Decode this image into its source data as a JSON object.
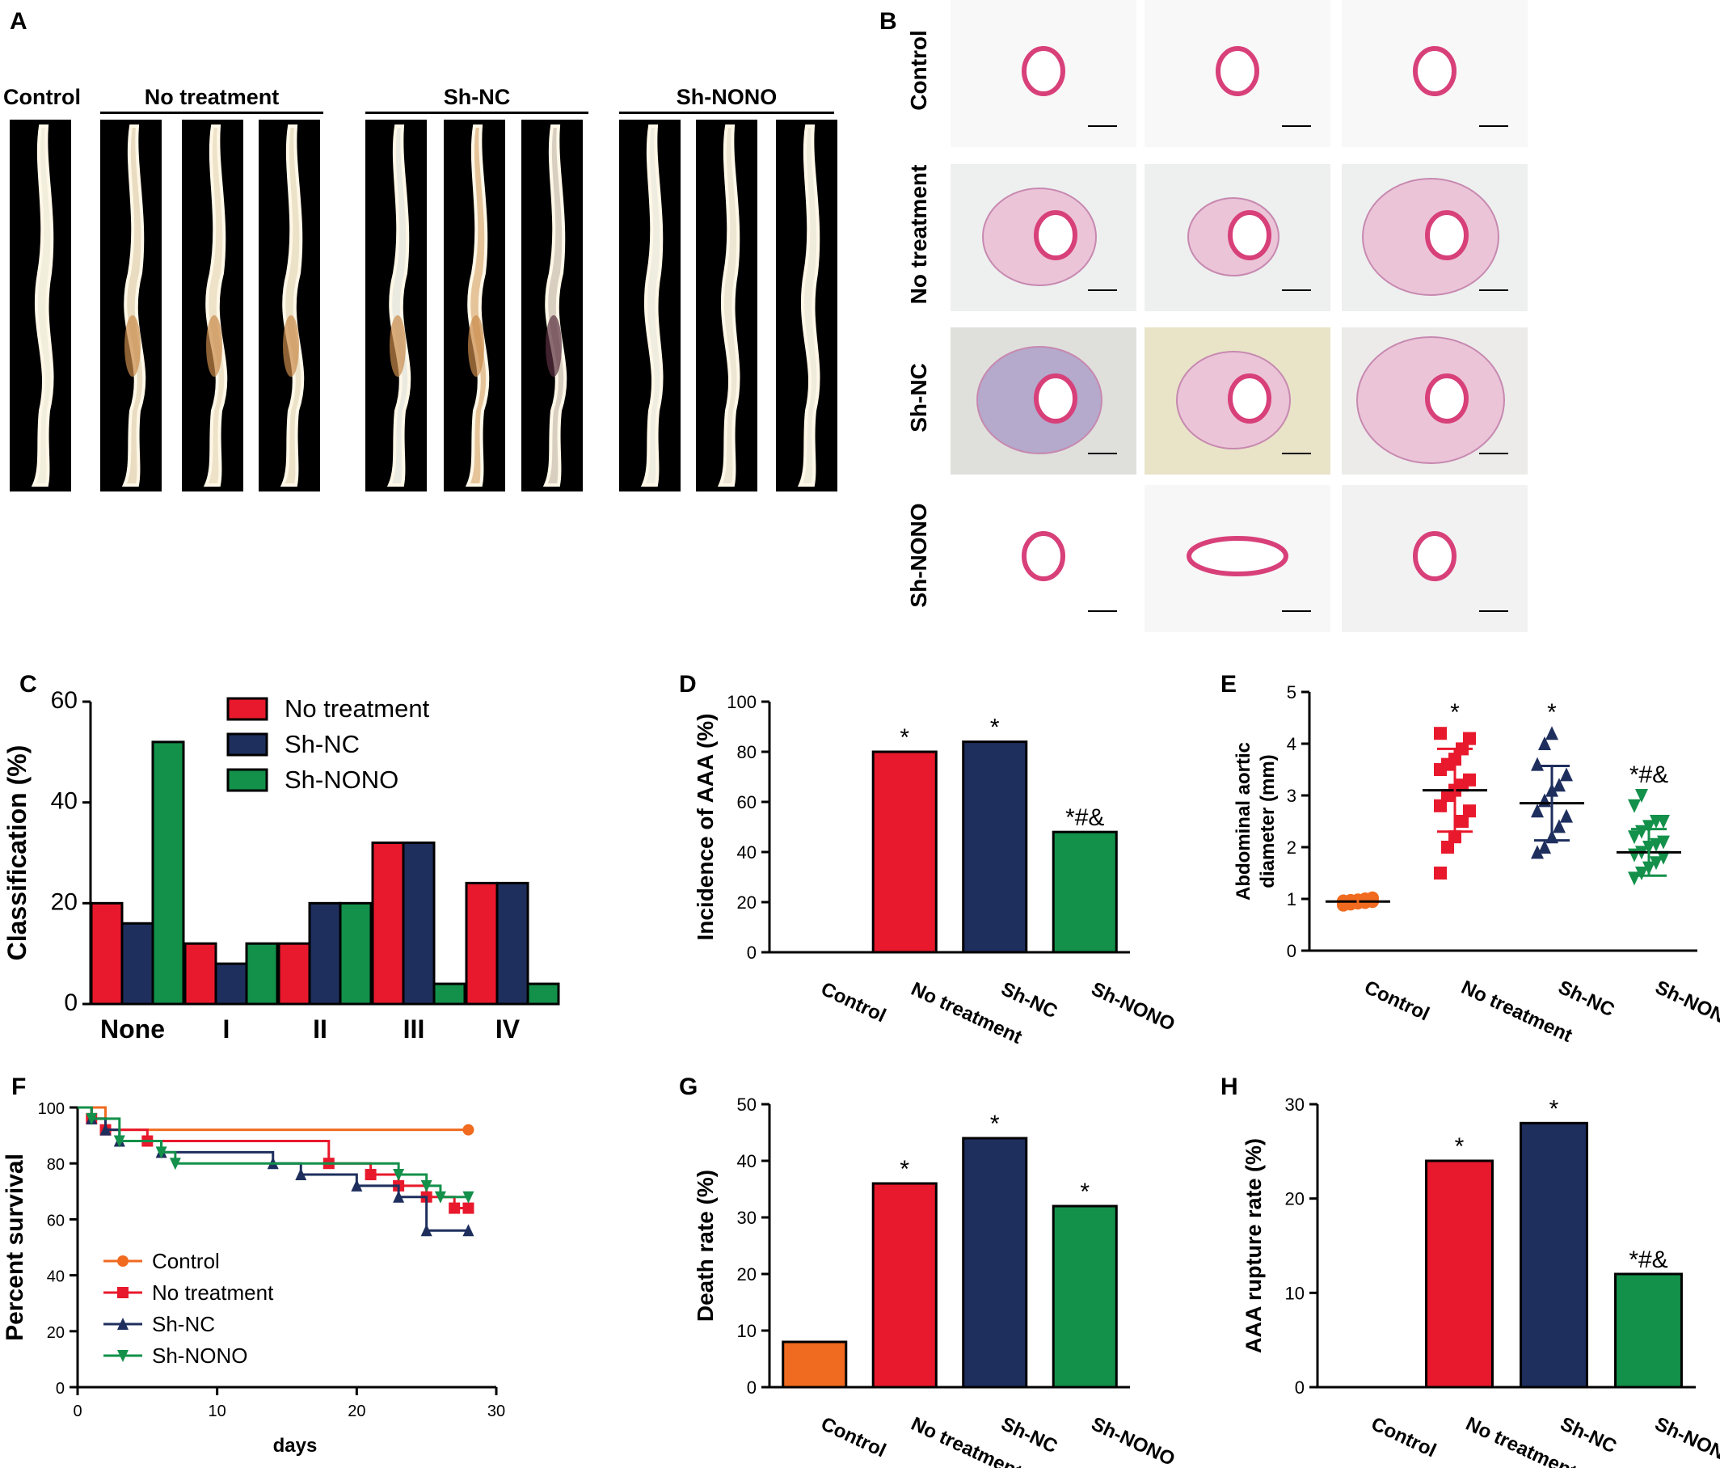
{
  "panelA": {
    "letter": "A",
    "groups": [
      "Control",
      "No treatment",
      "Sh-NC",
      "Sh-NONO"
    ]
  },
  "panelB": {
    "letter": "B",
    "rows": [
      "Control",
      "No treatment",
      "Sh-NC",
      "Sh-NONO"
    ]
  },
  "chart_data": [
    {
      "panel": "C",
      "type": "bar",
      "ylabel": "Classification (%)",
      "ylim": [
        0,
        60
      ],
      "yticks": [
        0,
        20,
        40,
        60
      ],
      "categories": [
        "None",
        "I",
        "II",
        "III",
        "IV"
      ],
      "series": [
        {
          "name": "No treatment",
          "values": [
            20,
            12,
            12,
            32,
            24
          ],
          "color": "#e8192c"
        },
        {
          "name": "Sh-NC",
          "values": [
            16,
            8,
            20,
            32,
            24
          ],
          "color": "#1e2f5e"
        },
        {
          "name": "Sh-NONO",
          "values": [
            52,
            12,
            20,
            4,
            4
          ],
          "color": "#13904a"
        }
      ],
      "legend": "top-right"
    },
    {
      "panel": "D",
      "type": "bar",
      "ylabel": "Incidence of AAA (%)",
      "ylim": [
        0,
        100
      ],
      "yticks": [
        0,
        20,
        40,
        60,
        80,
        100
      ],
      "categories": [
        "Control",
        "No treatment",
        "Sh-NC",
        "Sh-NONO"
      ],
      "values": [
        0,
        80,
        84,
        48
      ],
      "colors": [
        "#f06a1f",
        "#e8192c",
        "#1e2f5e",
        "#13904a"
      ],
      "annotations": [
        "",
        "*",
        "*",
        "*#&"
      ]
    },
    {
      "panel": "E",
      "type": "scatter",
      "ylabel": "Abdominal aortic diameter (mm)",
      "ylim": [
        0,
        5
      ],
      "yticks": [
        0,
        1,
        2,
        3,
        4,
        5
      ],
      "categories": [
        "Control",
        "No treatment",
        "Sh-NC",
        "Sh-NONO"
      ],
      "means": [
        0.95,
        3.1,
        2.85,
        1.9
      ],
      "sd": [
        0.05,
        0.8,
        0.72,
        0.45
      ],
      "colors": [
        "#f06a1f",
        "#e8192c",
        "#1e2f5e",
        "#13904a"
      ],
      "markers": [
        "circle",
        "square",
        "triangle-up",
        "triangle-down"
      ],
      "points": [
        [
          0.88,
          0.9,
          0.92,
          0.93,
          0.95,
          0.96,
          0.97,
          0.98,
          1.0,
          1.02,
          0.9,
          0.95
        ],
        [
          1.5,
          2.0,
          2.2,
          2.5,
          2.7,
          2.8,
          3.0,
          3.1,
          3.2,
          3.3,
          3.5,
          3.6,
          3.7,
          3.9,
          4.1,
          4.2
        ],
        [
          1.9,
          2.0,
          2.2,
          2.4,
          2.6,
          2.7,
          2.9,
          3.1,
          3.2,
          3.4,
          3.6,
          4.0,
          4.2
        ],
        [
          1.4,
          1.5,
          1.6,
          1.7,
          1.8,
          1.85,
          1.9,
          2.0,
          2.05,
          2.1,
          2.2,
          2.3,
          2.4,
          2.5,
          2.5,
          2.8,
          3.0
        ]
      ],
      "annotations": [
        "",
        "*",
        "*",
        "*#&"
      ]
    },
    {
      "panel": "F",
      "type": "line",
      "ylabel": "Percent survival",
      "xlabel": "days",
      "xlim": [
        0,
        30
      ],
      "ylim": [
        0,
        100
      ],
      "xticks": [
        0,
        10,
        20,
        30
      ],
      "yticks": [
        0,
        20,
        40,
        60,
        80,
        100
      ],
      "legend": "bottom-left",
      "series": [
        {
          "name": "Control",
          "color": "#f06a1f",
          "marker": "circle",
          "steps": [
            [
              0,
              100
            ],
            [
              2,
              92
            ],
            [
              28,
              92
            ]
          ],
          "marks": [
            [
              28,
              92
            ]
          ]
        },
        {
          "name": "No treatment",
          "color": "#e8192c",
          "marker": "square",
          "steps": [
            [
              0,
              100
            ],
            [
              1,
              96
            ],
            [
              2,
              92
            ],
            [
              5,
              88
            ],
            [
              18,
              80
            ],
            [
              21,
              76
            ],
            [
              23,
              72
            ],
            [
              25,
              68
            ],
            [
              27,
              64
            ],
            [
              28,
              64
            ]
          ],
          "marks": [
            [
              1,
              96
            ],
            [
              2,
              92
            ],
            [
              5,
              88
            ],
            [
              18,
              80
            ],
            [
              21,
              76
            ],
            [
              23,
              72
            ],
            [
              25,
              68
            ],
            [
              27,
              64
            ],
            [
              28,
              64
            ]
          ]
        },
        {
          "name": "Sh-NC",
          "color": "#1e2f5e",
          "marker": "triangle-up",
          "steps": [
            [
              0,
              100
            ],
            [
              1,
              96
            ],
            [
              2,
              92
            ],
            [
              3,
              88
            ],
            [
              6,
              84
            ],
            [
              14,
              80
            ],
            [
              16,
              76
            ],
            [
              20,
              72
            ],
            [
              23,
              68
            ],
            [
              25,
              56
            ],
            [
              28,
              56
            ]
          ],
          "marks": [
            [
              1,
              96
            ],
            [
              2,
              92
            ],
            [
              3,
              88
            ],
            [
              6,
              84
            ],
            [
              14,
              80
            ],
            [
              16,
              76
            ],
            [
              20,
              72
            ],
            [
              23,
              68
            ],
            [
              25,
              56
            ],
            [
              28,
              56
            ]
          ]
        },
        {
          "name": "Sh-NONO",
          "color": "#13904a",
          "marker": "triangle-down",
          "steps": [
            [
              0,
              100
            ],
            [
              1,
              96
            ],
            [
              3,
              88
            ],
            [
              6,
              84
            ],
            [
              7,
              80
            ],
            [
              23,
              76
            ],
            [
              25,
              72
            ],
            [
              26,
              68
            ],
            [
              28,
              68
            ]
          ],
          "marks": [
            [
              1,
              96
            ],
            [
              3,
              88
            ],
            [
              6,
              84
            ],
            [
              7,
              80
            ],
            [
              23,
              76
            ],
            [
              25,
              72
            ],
            [
              26,
              68
            ],
            [
              28,
              68
            ]
          ]
        }
      ]
    },
    {
      "panel": "G",
      "type": "bar",
      "ylabel": "Death rate (%)",
      "ylim": [
        0,
        50
      ],
      "yticks": [
        0,
        10,
        20,
        30,
        40,
        50
      ],
      "categories": [
        "Control",
        "No treatment",
        "Sh-NC",
        "Sh-NONO"
      ],
      "values": [
        8,
        36,
        44,
        32
      ],
      "colors": [
        "#f06a1f",
        "#e8192c",
        "#1e2f5e",
        "#13904a"
      ],
      "annotations": [
        "",
        "*",
        "*",
        "*"
      ]
    },
    {
      "panel": "H",
      "type": "bar",
      "ylabel": "AAA rupture rate (%)",
      "ylim": [
        0,
        30
      ],
      "yticks": [
        0,
        10,
        20,
        30
      ],
      "categories": [
        "Control",
        "No treatment",
        "Sh-NC",
        "Sh-NONO"
      ],
      "values": [
        0,
        24,
        28,
        12
      ],
      "colors": [
        "#f06a1f",
        "#e8192c",
        "#1e2f5e",
        "#13904a"
      ],
      "annotations": [
        "",
        "*",
        "*",
        "*#&"
      ]
    }
  ]
}
